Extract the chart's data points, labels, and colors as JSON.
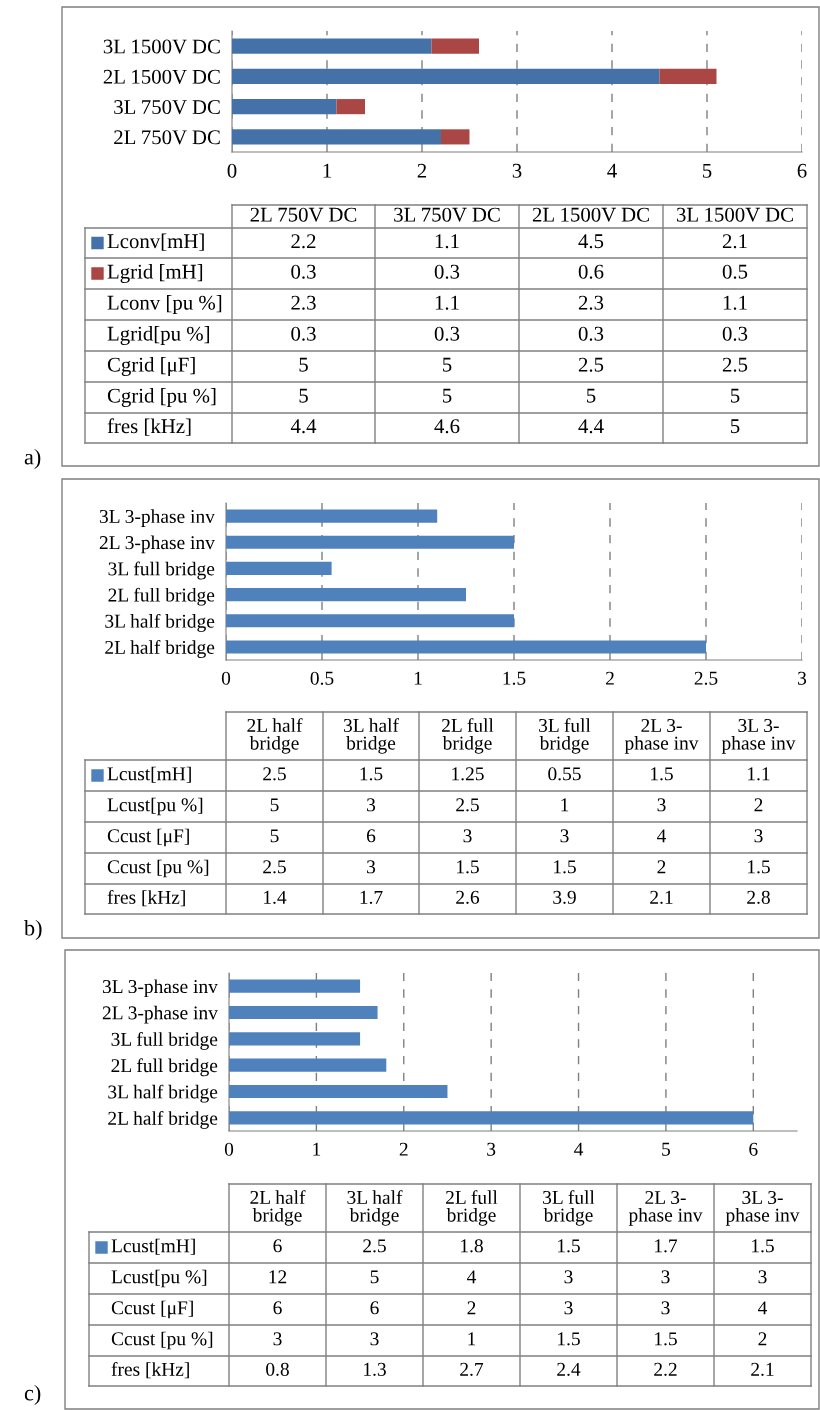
{
  "chart_data": [
    {
      "type": "bar",
      "orientation": "horizontal",
      "stacked": true,
      "categories": [
        "3L 1500V DC",
        "2L 1500V DC",
        "3L 750V DC",
        "2L 750V DC"
      ],
      "series": [
        {
          "name": "Lconv[mH]",
          "color": "#4472a8",
          "values": [
            2.1,
            4.5,
            1.1,
            2.2
          ]
        },
        {
          "name": "Lgrid [mH]",
          "color": "#aa4643",
          "values": [
            0.5,
            0.6,
            0.3,
            0.3
          ]
        }
      ],
      "xlim": [
        0,
        6
      ],
      "xticks": [
        0,
        1,
        2,
        3,
        4,
        5,
        6
      ],
      "grid": "x",
      "legend": "bottom"
    },
    {
      "type": "other",
      "categories": [
        "2L 750V DC",
        "3L 750V DC",
        "2L 1500V DC",
        "3L 1500V DC"
      ],
      "series": [
        {
          "values": [
            2.2,
            1.1,
            4.5,
            2.1
          ]
        },
        {
          "values": [
            0.3,
            0.3,
            0.6,
            0.5
          ]
        },
        {
          "name": "Lconv [pu %]",
          "values": [
            2.3,
            1.1,
            2.3,
            1.1
          ]
        },
        {
          "name": "Lgrid[pu %]",
          "values": [
            0.3,
            0.3,
            0.3,
            0.3
          ]
        },
        {
          "name": "Cgrid [μF]",
          "values": [
            5,
            5,
            2.5,
            2.5
          ]
        },
        {
          "name": "Cgrid [pu %]",
          "values": [
            5,
            5,
            5,
            5
          ]
        },
        {
          "name": "fres [kHz]",
          "values": [
            4.4,
            4.6,
            4.4,
            5
          ]
        }
      ],
      "data_labels": true,
      "annotations": [
        "a)"
      ]
    },
    {
      "type": "bar",
      "orientation": "horizontal",
      "categories": [
        "3L 3-phase inv",
        "2L 3-phase inv",
        "3L full bridge",
        "2L full bridge",
        "3L half bridge",
        "2L half bridge"
      ],
      "series": [
        {
          "name": "Lcust[mH]",
          "color": "#4f81bd",
          "values": [
            1.1,
            1.5,
            0.55,
            1.25,
            1.5,
            2.5
          ]
        }
      ],
      "xlim": [
        0,
        3
      ],
      "xticks": [
        0,
        0.5,
        1,
        1.5,
        2,
        2.5,
        3
      ],
      "grid": "x",
      "legend": "bottom"
    },
    {
      "type": "other",
      "categories": [
        "2L half\nbridge",
        "3L half\nbridge",
        "2L full\nbridge",
        "3L full\nbridge",
        "2L 3-\nphase inv",
        "3L 3-\nphase inv"
      ],
      "series": [
        {
          "values": [
            2.5,
            1.5,
            1.25,
            0.55,
            1.5,
            1.1
          ]
        },
        {
          "name": "Lcust[pu %]",
          "values": [
            5,
            3,
            2.5,
            1,
            3,
            2
          ]
        },
        {
          "name": "Ccust [μF]",
          "values": [
            5,
            6,
            3,
            3,
            4,
            3
          ]
        },
        {
          "name": "Ccust [pu %]",
          "values": [
            2.5,
            3,
            1.5,
            1.5,
            2,
            1.5
          ]
        },
        {
          "name": "fres [kHz]",
          "values": [
            1.4,
            1.7,
            2.6,
            3.9,
            2.1,
            2.8
          ]
        }
      ],
      "data_labels": true,
      "annotations": [
        "b)"
      ]
    },
    {
      "type": "bar",
      "orientation": "horizontal",
      "categories": [
        "3L 3-phase inv",
        "2L 3-phase inv",
        "3L full bridge",
        "2L full bridge",
        "3L half bridge",
        "2L half bridge"
      ],
      "series": [
        {
          "name": "Lcust[mH]",
          "color": "#4f81bd",
          "values": [
            1.5,
            1.7,
            1.5,
            1.8,
            2.5,
            6
          ]
        }
      ],
      "xlim": [
        0,
        6.5
      ],
      "xticks": [
        0,
        1,
        2,
        3,
        4,
        5,
        6
      ],
      "grid": "x",
      "legend": "bottom"
    },
    {
      "type": "other",
      "categories": [
        "2L half\nbridge",
        "3L half\nbridge",
        "2L full\nbridge",
        "3L full\nbridge",
        "2L 3-\nphase inv",
        "3L 3-\nphase inv"
      ],
      "series": [
        {
          "values": [
            6,
            2.5,
            1.8,
            1.5,
            1.7,
            1.5
          ]
        },
        {
          "name": "Lcust[pu %]",
          "values": [
            12,
            5,
            4,
            3,
            3,
            3
          ]
        },
        {
          "name": "Ccust [μF]",
          "values": [
            6,
            6,
            2,
            3,
            3,
            4
          ]
        },
        {
          "name": "Ccust [pu %]",
          "values": [
            3,
            3,
            1,
            1.5,
            1.5,
            2
          ]
        },
        {
          "name": "fres [kHz]",
          "values": [
            0.8,
            1.3,
            2.7,
            2.4,
            2.2,
            2.1
          ]
        }
      ],
      "data_labels": true,
      "annotations": [
        "c)"
      ]
    }
  ]
}
